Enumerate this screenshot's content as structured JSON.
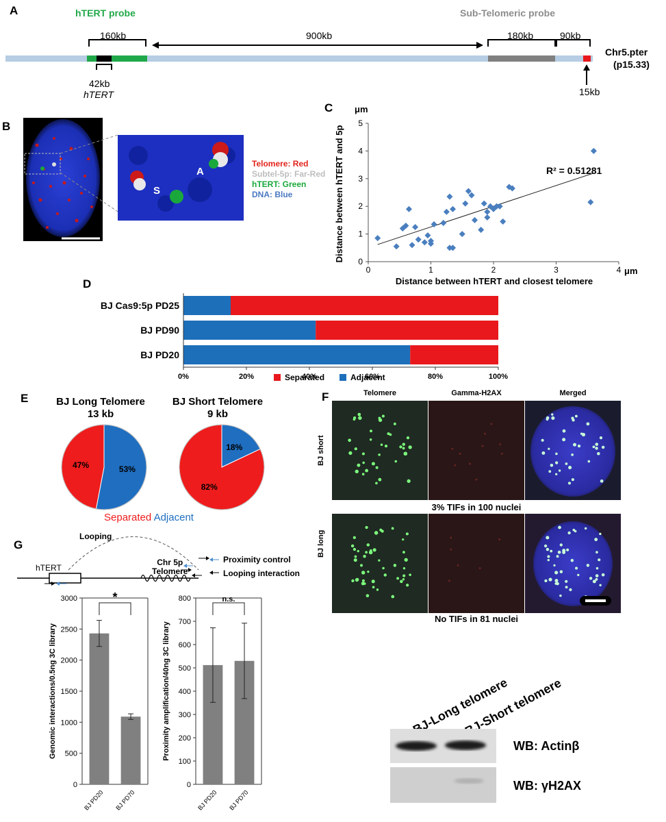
{
  "panelA": {
    "letter": "A",
    "htert_probe": "hTERT probe",
    "subtel_probe": "Sub-Telomeric probe",
    "len_160": "160kb",
    "len_900": "900kb",
    "len_180": "180kb",
    "len_90": "90kb",
    "len_42": "42kb",
    "htert_italic": "hTERT",
    "len_15": "15kb",
    "chr": "Chr5.pter",
    "band": "(p15.33)"
  },
  "panelB": {
    "letter": "B",
    "label_s": "S",
    "label_a": "A",
    "legend": [
      "Telomere: Red",
      "Subtel-5p: Far-Red",
      "hTERT: Green",
      "DNA: Blue"
    ],
    "colors": {
      "red": "#e2231a",
      "farred": "#bdbdbd",
      "green": "#1aa83c",
      "blue": "#4a78c0"
    }
  },
  "panelC": {
    "letter": "C",
    "unit_y": "μm",
    "unit_x": "μm",
    "ylabel": "Distance between hTERT and 5p",
    "xlabel": "Distance between hTERT and closest telomere",
    "r2": "R² = 0.51281"
  },
  "panelD": {
    "letter": "D",
    "legend_separated": "Separated",
    "legend_adjacent": "Adjacent"
  },
  "panelE": {
    "letter": "E",
    "long_title1": "BJ Long Telomere",
    "long_title2": "13 kb",
    "short_title1": "BJ Short Telomere",
    "short_title2": "9 kb",
    "legend_separated": "Separated",
    "legend_adjacent": "Adjacent"
  },
  "panelF": {
    "letter": "F",
    "col_headers": [
      "Telomere",
      "Gamma-H2AX",
      "Merged"
    ],
    "row_short": "BJ short",
    "row_long": "BJ long",
    "caption_short": "3% TIFs in 100 nuclei",
    "caption_long": "No TIFs in 81 nuclei"
  },
  "panelG": {
    "letter": "G",
    "looping": "Looping",
    "htert": "hTERT",
    "chr5p_line1": "Chr 5p",
    "chr5p_line2": "Telomere",
    "proximity_control": "Proximity control",
    "looping_interaction": "Looping interaction"
  },
  "western": {
    "lane1": "BJ-Long telomere",
    "lane2": "BJ-Short telomere",
    "wb1": "WB: Actinβ",
    "wb2": "WB: γH2AX"
  },
  "chart_data": [
    {
      "id": "C",
      "type": "scatter",
      "xlabel": "Distance between hTERT and closest telomere",
      "ylabel": "Distance between hTERT and 5p",
      "xlim": [
        0,
        4
      ],
      "ylim": [
        0,
        5
      ],
      "xticks": [
        "0",
        "1",
        "2",
        "3",
        "4"
      ],
      "yticks": [
        "0",
        "1",
        "2",
        "3",
        "4",
        "5"
      ],
      "color": "#4a7fbf",
      "points": [
        [
          0.15,
          0.85
        ],
        [
          0.45,
          0.55
        ],
        [
          0.55,
          1.2
        ],
        [
          0.6,
          1.3
        ],
        [
          0.65,
          1.9
        ],
        [
          0.7,
          0.6
        ],
        [
          0.75,
          1.25
        ],
        [
          0.8,
          0.8
        ],
        [
          0.9,
          0.7
        ],
        [
          0.95,
          0.95
        ],
        [
          1.0,
          0.75
        ],
        [
          1.0,
          0.65
        ],
        [
          1.05,
          1.35
        ],
        [
          1.2,
          1.4
        ],
        [
          1.25,
          1.8
        ],
        [
          1.3,
          0.5
        ],
        [
          1.3,
          2.35
        ],
        [
          1.35,
          0.5
        ],
        [
          1.35,
          1.9
        ],
        [
          1.5,
          1.0
        ],
        [
          1.55,
          2.1
        ],
        [
          1.6,
          2.55
        ],
        [
          1.65,
          2.4
        ],
        [
          1.7,
          1.5
        ],
        [
          1.8,
          1.15
        ],
        [
          1.85,
          2.1
        ],
        [
          1.9,
          1.8
        ],
        [
          1.9,
          1.6
        ],
        [
          1.95,
          2.0
        ],
        [
          2.0,
          1.9
        ],
        [
          2.05,
          2.0
        ],
        [
          2.1,
          2.0
        ],
        [
          2.15,
          1.45
        ],
        [
          2.25,
          2.7
        ],
        [
          2.3,
          2.65
        ],
        [
          3.55,
          2.15
        ],
        [
          3.6,
          4.0
        ]
      ],
      "trendline": [
        [
          0.15,
          0.62
        ],
        [
          3.6,
          3.2
        ]
      ],
      "annotation": "R² = 0.51281"
    },
    {
      "id": "D",
      "type": "bar",
      "orientation": "horizontal-stacked",
      "categories": [
        "BJ Cas9:5p PD25",
        "BJ PD90",
        "BJ PD20"
      ],
      "series": [
        {
          "name": "Adjacent",
          "values": [
            15,
            42,
            72
          ],
          "color": "#1d6fba"
        },
        {
          "name": "Separated",
          "values": [
            85,
            58,
            28
          ],
          "color": "#e8181c"
        }
      ],
      "xticks": [
        "0%",
        "20%",
        "40%",
        "60%",
        "80%",
        "100%"
      ],
      "xlim": [
        0,
        100
      ]
    },
    {
      "id": "E-long",
      "type": "pie",
      "labels": [
        "Adjacent",
        "Separated"
      ],
      "values": [
        53,
        47
      ],
      "value_labels": [
        "53%",
        "47%"
      ],
      "colors": [
        "#1f6ec0",
        "#ee1c1c"
      ]
    },
    {
      "id": "E-short",
      "type": "pie",
      "labels": [
        "Adjacent",
        "Separated"
      ],
      "values": [
        18,
        82
      ],
      "value_labels": [
        "18%",
        "82%"
      ],
      "colors": [
        "#1f6ec0",
        "#ee1c1c"
      ]
    },
    {
      "id": "G-left",
      "type": "bar",
      "categories": [
        "BJ PD20",
        "BJ PD70"
      ],
      "values": [
        2430,
        1090
      ],
      "errors": [
        210,
        45
      ],
      "ylabel": "Genomic interactions/0.5ng 3C library",
      "ylim": [
        0,
        3000
      ],
      "yticks": [
        "0",
        "500",
        "1000",
        "1500",
        "2000",
        "2500",
        "3000"
      ],
      "significance": "*",
      "color": "#808080"
    },
    {
      "id": "G-right",
      "type": "bar",
      "categories": [
        "BJ PD20",
        "BJ PD70"
      ],
      "values": [
        512,
        530
      ],
      "errors": [
        160,
        162
      ],
      "ylabel": "Proximity amplification/40ng 3C library",
      "ylim": [
        0,
        800
      ],
      "yticks": [
        "0",
        "100",
        "200",
        "300",
        "400",
        "500",
        "600",
        "700",
        "800"
      ],
      "significance": "n.s.",
      "color": "#808080"
    }
  ]
}
